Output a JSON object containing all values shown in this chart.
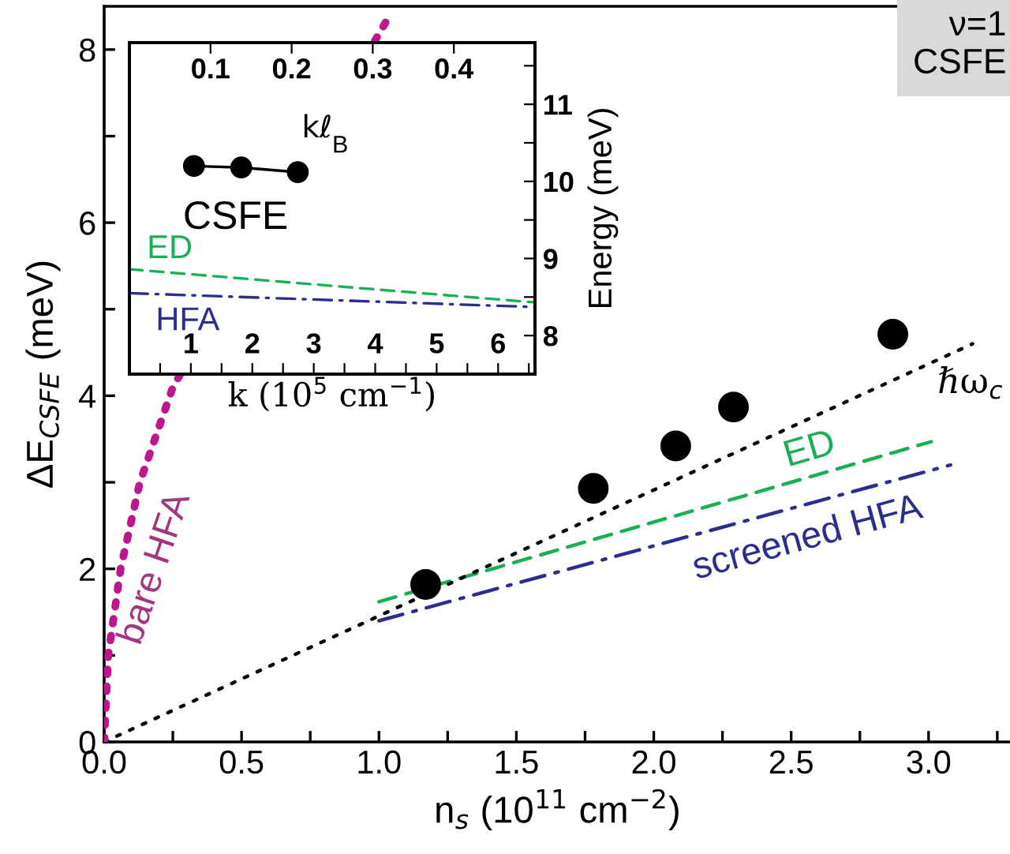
{
  "chart_data": [
    {
      "type": "line",
      "xlabel": "n$_{s}$ (10$^{11}$ cm$^{−2}$)",
      "ylabel": "ΔE$_{CSFE}$ (meV)",
      "xlim": [
        0,
        3.3
      ],
      "ylim": [
        0,
        8.5
      ],
      "xticks": [
        {
          "value": 0,
          "label": "0.0"
        },
        {
          "value": 0.25,
          "label": null
        },
        {
          "value": 0.5,
          "label": "0.5"
        },
        {
          "value": 0.75,
          "label": null
        },
        {
          "value": 1.0,
          "label": "1.0"
        },
        {
          "value": 1.25,
          "label": null
        },
        {
          "value": 1.5,
          "label": "1.5"
        },
        {
          "value": 1.75,
          "label": null
        },
        {
          "value": 2.0,
          "label": "2.0"
        },
        {
          "value": 2.25,
          "label": null
        },
        {
          "value": 2.5,
          "label": "2.5"
        },
        {
          "value": 2.75,
          "label": null
        },
        {
          "value": 3.0,
          "label": "3.0"
        },
        {
          "value": 3.25,
          "label": null
        }
      ],
      "yticks": [
        0,
        {
          "value": 1,
          "label": null
        },
        2,
        {
          "value": 3,
          "label": null
        },
        4,
        {
          "value": 5,
          "label": null
        },
        6,
        {
          "value": 7,
          "label": null
        },
        8
      ],
      "grid": false,
      "legend": false,
      "series": [
        {
          "type": "scatter",
          "marker": "circle",
          "color": "#000000",
          "x": [
            1.17,
            1.78,
            2.08,
            2.29,
            2.87
          ],
          "values": [
            1.82,
            2.93,
            3.42,
            3.87,
            4.71
          ]
        },
        {
          "name": "ED",
          "color": "#1aaf54",
          "line_style": "dashed",
          "x": [
            1.0,
            3.01
          ],
          "values": [
            1.62,
            3.47
          ]
        },
        {
          "name": "screened HFA",
          "color": "#2b2e8c",
          "line_style": "dashdot",
          "x": [
            1.0,
            3.08
          ],
          "values": [
            1.4,
            3.2
          ]
        },
        {
          "name": "ℏω$_{c}$",
          "color": "#000000",
          "line_style": "dotted",
          "x": [
            0,
            3.16
          ],
          "values": [
            0,
            4.6
          ]
        },
        {
          "name": "bare HFA",
          "color": "#c0168c",
          "line_style": "dotted",
          "x": [
            0,
            0.015,
            0.06,
            0.13,
            0.25,
            1.04
          ],
          "values": [
            0,
            1,
            2,
            3,
            4.1,
            8.4
          ]
        }
      ],
      "annotations": [
        "ν=1\nCSFE"
      ]
    },
    {
      "type": "line",
      "xlabel": "k (10$^{5}$ cm$^{−1}$)",
      "x2label": "kℓ$_{B}$",
      "y2label": "Energy (meV)",
      "xlim": [
        0,
        6.6
      ],
      "xticks": [
        {
          "value": 0.5,
          "label": null
        },
        1,
        {
          "value": 1.5,
          "label": null
        },
        2,
        {
          "value": 2.5,
          "label": null
        },
        3,
        {
          "value": 3.5,
          "label": null
        },
        4,
        {
          "value": 4.5,
          "label": null
        },
        5,
        {
          "value": 5.5,
          "label": null
        },
        6,
        {
          "value": 6.5,
          "label": null
        }
      ],
      "x2lim": [
        0,
        0.5
      ],
      "x2ticks": [
        0.1,
        0.2,
        0.3,
        0.4
      ],
      "y2lim": [
        7.5,
        11.8
      ],
      "y2ticks": [
        8,
        {
          "value": 8.5,
          "label": null
        },
        9,
        {
          "value": 9.5,
          "label": null
        },
        10,
        {
          "value": 10.5,
          "label": null
        },
        11,
        {
          "value": 11.5,
          "label": null
        }
      ],
      "grid": false,
      "series": [
        {
          "name": "CSFE",
          "type": "line",
          "marker": "circle",
          "color": "#000000",
          "axis": "y2",
          "x": [
            1.05,
            1.82,
            2.74
          ],
          "values": [
            10.2,
            10.18,
            10.12
          ]
        },
        {
          "name": "ED",
          "color": "#1aaf54",
          "line_style": "dashed",
          "axis": "y2",
          "x": [
            0,
            6.6
          ],
          "values": [
            8.86,
            8.43
          ]
        },
        {
          "name": "HFA",
          "color": "#2b2e8c",
          "line_style": "dashdot",
          "axis": "y2",
          "x": [
            0,
            6.6
          ],
          "values": [
            8.55,
            8.37
          ]
        }
      ]
    }
  ]
}
